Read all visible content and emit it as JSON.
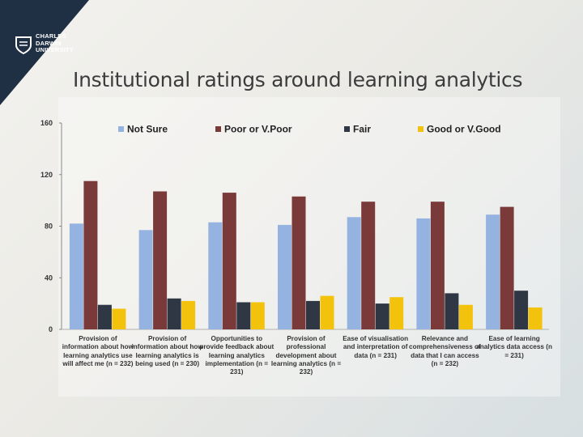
{
  "logo": {
    "icon": "shield-icon",
    "line1": "CHARLES",
    "line2": "DARWIN",
    "line3": "UNIVERSITY"
  },
  "slide": {
    "title": "Institutional ratings around learning analytics"
  },
  "colors": {
    "not_sure": "#95b3e0",
    "poor": "#7a3a3a",
    "fair": "#2f3644",
    "good": "#f3c20d",
    "logo_bg": "#1f2f44"
  },
  "chart_data": {
    "type": "bar",
    "title": "",
    "xlabel": "",
    "ylabel": "",
    "ylim": [
      0,
      160
    ],
    "yticks": [
      0,
      40,
      80,
      120,
      160
    ],
    "grid": false,
    "legend_position": "top",
    "categories": [
      "Provision of information about how learning analytics use will affect me (n = 232)",
      "Provision of information about how learning analytics is being used (n = 230)",
      "Opportunities to provide feedback about learning analytics implementation (n = 231)",
      "Provision of professional development about learning analytics (n = 232)",
      "Ease of visualisation and interpretation of data (n = 231)",
      "Relevance and comprehensiveness of data that I can access (n = 232)",
      "Ease of learning analytics data access (n = 231)"
    ],
    "series": [
      {
        "name": "Not Sure",
        "values": [
          82,
          77,
          83,
          81,
          87,
          86,
          89
        ]
      },
      {
        "name": "Poor or V.Poor",
        "values": [
          115,
          107,
          106,
          103,
          99,
          99,
          95
        ]
      },
      {
        "name": "Fair",
        "values": [
          19,
          24,
          21,
          22,
          20,
          28,
          30
        ]
      },
      {
        "name": "Good or V.Good",
        "values": [
          16,
          22,
          21,
          26,
          25,
          19,
          17
        ]
      }
    ]
  }
}
